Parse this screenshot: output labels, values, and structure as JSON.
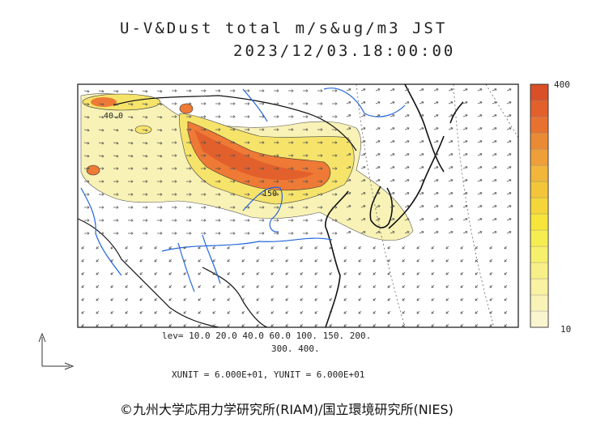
{
  "title": {
    "line1": "U-V&Dust total m/s&ug/m3 JST",
    "line2": "2023/12/03.18:00:00"
  },
  "legend": {
    "levels_line1": "lev= 10.0 20.0 40.0 60.0 100. 150. 200.",
    "levels_line2": "300. 400.",
    "units": "XUNIT = 6.000E+01, YUNIT = 6.000E+01",
    "colorbar_max": "400",
    "colorbar_min": "10",
    "colorbar_colors": [
      "#fbf5cf",
      "#f9f3b8",
      "#f8f2a2",
      "#f7f089",
      "#f6f06c",
      "#f6ee51",
      "#f7e53c",
      "#f5d63a",
      "#f3c63a",
      "#f1b63a",
      "#ee9f3a",
      "#eb8a35",
      "#e77230",
      "#e2602c",
      "#d94f28"
    ]
  },
  "contour_labels": [
    "40.0",
    "150"
  ],
  "colors": {
    "coast": "#111111",
    "river": "#2266dd",
    "dust_light": "#f8f2b6",
    "dust_mid": "#f6e36a",
    "dust_heavy": "#ee7a36"
  },
  "copyright": "©九州大学応用力学研究所(RIAM)/国立環境研究所(NIES)"
}
